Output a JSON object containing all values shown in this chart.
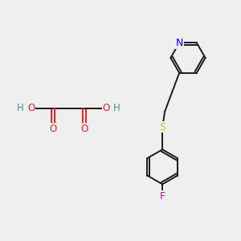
{
  "background_color": "#efefef",
  "bond_color": "#1a1a1a",
  "bond_lw": 1.4,
  "O_color": "#ff1a1a",
  "N_color": "#0000ff",
  "S_color": "#cccc00",
  "F_color": "#cc00cc",
  "H_color": "#4a9090",
  "figsize": [
    3.0,
    3.0
  ],
  "dpi": 100,
  "xlim": [
    0,
    10
  ],
  "ylim": [
    0,
    10
  ]
}
